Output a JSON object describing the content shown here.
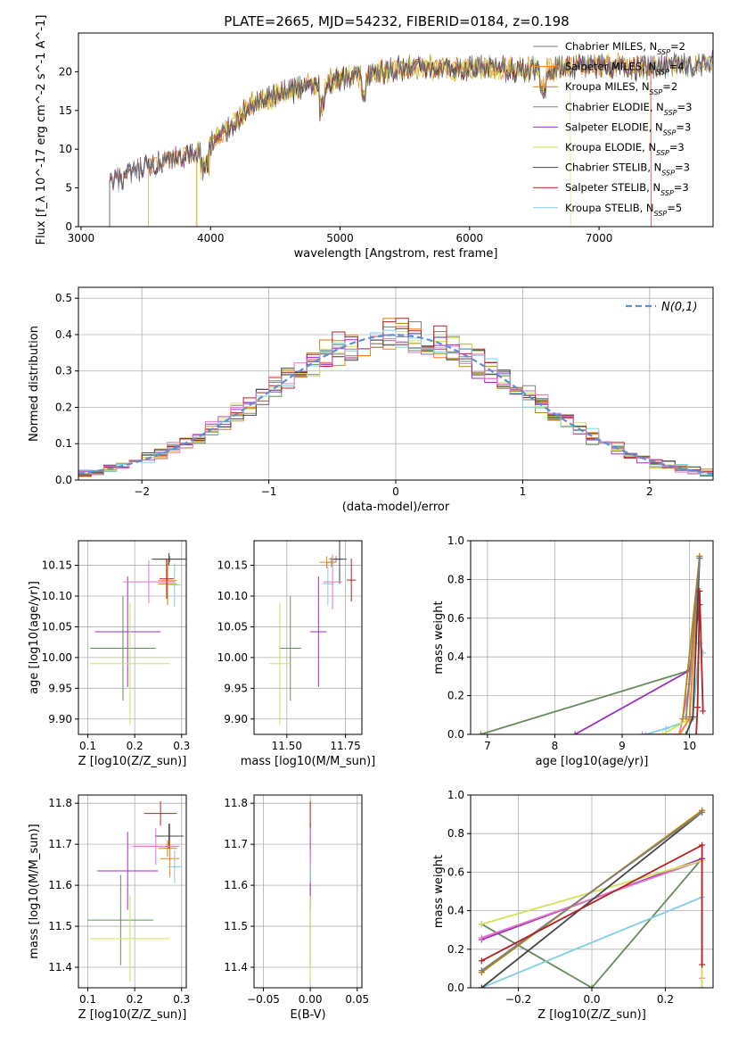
{
  "figure_title": "PLATE=2665, MJD=54232, FIBERID=0184, z=0.198",
  "palette": [
    "#7f7f7f",
    "#ff7f0e",
    "#b8860b",
    "#6a8a5e",
    "#9b30c0",
    "#d4e157",
    "#444444",
    "#b22222",
    "#80d0e0",
    "#e377c2"
  ],
  "chart_data": [
    {
      "id": "spectrum",
      "type": "line",
      "title": "PLATE=2665, MJD=54232, FIBERID=0184, z=0.198",
      "xlabel": "wavelength [Angstrom, rest frame]",
      "ylabel": "Flux [f_λ 10^-17 erg cm^-2 s^-1 A^-1]",
      "xlim": [
        2980,
        7880
      ],
      "ylim": [
        0,
        25
      ],
      "xticks": [
        3000,
        4000,
        5000,
        6000,
        7000
      ],
      "yticks": [
        0,
        5,
        10,
        15,
        20
      ],
      "grid": false,
      "legend_position": "right",
      "continuum": [
        [
          3220,
          5.5
        ],
        [
          3500,
          7.5
        ],
        [
          3900,
          9.5
        ],
        [
          4100,
          12
        ],
        [
          4300,
          15.5
        ],
        [
          4600,
          17.5
        ],
        [
          5000,
          19
        ],
        [
          5500,
          20.5
        ],
        [
          6000,
          20.5
        ],
        [
          6500,
          20.2
        ],
        [
          7000,
          20.8
        ],
        [
          7400,
          20.5
        ],
        [
          7800,
          21
        ]
      ],
      "legend": [
        {
          "name": "Chabrier MILES, N_SSP=2",
          "color": "#7f7f7f"
        },
        {
          "name": "Salpeter MILES, N_SSP=4",
          "color": "#ff7f0e"
        },
        {
          "name": "Kroupa MILES, N_SSP=2",
          "color": "#b8860b"
        },
        {
          "name": "Chabrier ELODIE, N_SSP=3",
          "color": "#6a8a5e"
        },
        {
          "name": "Salpeter ELODIE, N_SSP=3",
          "color": "#9b30c0"
        },
        {
          "name": "Kroupa ELODIE, N_SSP=3",
          "color": "#d4e157"
        },
        {
          "name": "Chabrier STELIB, N_SSP=3",
          "color": "#444444"
        },
        {
          "name": "Salpeter STELIB, N_SSP=3",
          "color": "#b22222"
        },
        {
          "name": "Kroupa STELIB, N_SSP=5",
          "color": "#80d0e0"
        }
      ]
    },
    {
      "id": "residuals",
      "type": "step",
      "xlabel": "(data-model)/error",
      "ylabel": "Normed distribution",
      "xlim": [
        -2.5,
        2.5
      ],
      "ylim": [
        0,
        0.53
      ],
      "xticks": [
        -2,
        -1,
        0,
        1,
        2
      ],
      "yticks": [
        0.0,
        0.1,
        0.2,
        0.3,
        0.4,
        0.5
      ],
      "grid": true,
      "legend_position": "top-right",
      "reference_curve": {
        "name": "N(0,1)",
        "mean": 0,
        "sigma": 1,
        "color": "#5b8ed6"
      }
    },
    {
      "id": "age_vs_Z",
      "type": "errorbar",
      "xlabel": "Z [log10(Z/Z_sun)]",
      "ylabel": "age [log10(age/yr)]",
      "xlim": [
        0.08,
        0.31
      ],
      "ylim": [
        9.875,
        10.19
      ],
      "xticks": [
        0.1,
        0.2,
        0.3
      ],
      "yticks": [
        9.9,
        9.95,
        10.0,
        10.05,
        10.1,
        10.15
      ],
      "grid": true,
      "points": [
        {
          "x": 0.275,
          "xerr": 0.04,
          "y": 10.16,
          "yerr": 0.005,
          "color": "#7f7f7f"
        },
        {
          "x": 0.27,
          "xerr": 0.02,
          "y": 10.125,
          "yerr": 0.035,
          "color": "#ff7f0e"
        },
        {
          "x": 0.27,
          "xerr": 0.02,
          "y": 10.12,
          "yerr": 0.035,
          "color": "#b8860b"
        },
        {
          "x": 0.175,
          "xerr": 0.07,
          "y": 10.015,
          "yerr": 0.085,
          "color": "#6a8a5e"
        },
        {
          "x": 0.185,
          "xerr": 0.07,
          "y": 10.042,
          "yerr": 0.09,
          "color": "#9b30c0"
        },
        {
          "x": 0.19,
          "xerr": 0.085,
          "y": 9.99,
          "yerr": 0.1,
          "color": "#d4e157"
        },
        {
          "x": 0.273,
          "xerr": 0.035,
          "y": 10.16,
          "yerr": 0.01,
          "color": "#444444"
        },
        {
          "x": 0.268,
          "xerr": 0.015,
          "y": 10.128,
          "yerr": 0.032,
          "color": "#b22222"
        },
        {
          "x": 0.285,
          "xerr": 0.015,
          "y": 10.118,
          "yerr": 0.035,
          "color": "#80d0e0"
        },
        {
          "x": 0.23,
          "xerr": 0.055,
          "y": 10.123,
          "yerr": 0.035,
          "color": "#e377c2"
        }
      ]
    },
    {
      "id": "age_vs_mass",
      "type": "errorbar",
      "xlabel": "mass [log10(M/M_sun)]",
      "ylabel": "",
      "xlim": [
        11.36,
        11.82
      ],
      "ylim": [
        9.875,
        10.19
      ],
      "xticks": [
        11.5,
        11.75
      ],
      "yticks": [
        9.9,
        9.95,
        10.0,
        10.05,
        10.1,
        10.15
      ],
      "grid": true,
      "points": [
        {
          "x": 11.71,
          "xerr": 0.03,
          "y": 10.16,
          "yerr": 0.005,
          "color": "#7f7f7f"
        },
        {
          "x": 11.67,
          "xerr": 0.03,
          "y": 10.155,
          "yerr": 0.01,
          "color": "#ff7f0e"
        },
        {
          "x": 11.69,
          "xerr": 0.02,
          "y": 10.155,
          "yerr": 0.008,
          "color": "#b8860b"
        },
        {
          "x": 11.515,
          "xerr": 0.045,
          "y": 10.015,
          "yerr": 0.085,
          "color": "#6a8a5e"
        },
        {
          "x": 11.635,
          "xerr": 0.035,
          "y": 10.042,
          "yerr": 0.09,
          "color": "#9b30c0"
        },
        {
          "x": 11.47,
          "xerr": 0.045,
          "y": 9.99,
          "yerr": 0.1,
          "color": "#d4e157"
        },
        {
          "x": 11.725,
          "xerr": 0.03,
          "y": 10.16,
          "yerr": 0.04,
          "color": "#444444"
        },
        {
          "x": 11.775,
          "xerr": 0.02,
          "y": 10.126,
          "yerr": 0.035,
          "color": "#b22222"
        },
        {
          "x": 11.675,
          "xerr": 0.025,
          "y": 10.12,
          "yerr": 0.035,
          "color": "#80d0e0"
        },
        {
          "x": 11.695,
          "xerr": 0.04,
          "y": 10.123,
          "yerr": 0.045,
          "color": "#e377c2"
        }
      ]
    },
    {
      "id": "mass_weight_vs_age",
      "type": "line",
      "xlabel": "age [log10(age/yr)]",
      "ylabel": "mass weight",
      "xlim": [
        6.75,
        10.35
      ],
      "ylim": [
        0,
        1.0
      ],
      "xticks": [
        7,
        8,
        9,
        10
      ],
      "yticks": [
        0.0,
        0.2,
        0.4,
        0.6,
        0.8,
        1.0
      ],
      "grid": true,
      "series": [
        {
          "color": "#6a8a5e",
          "x": [
            6.9,
            10.0,
            10.15
          ],
          "y": [
            0.0,
            0.33,
            0.67
          ]
        },
        {
          "color": "#9b30c0",
          "x": [
            8.3,
            10.0,
            10.15
          ],
          "y": [
            0.0,
            0.33,
            0.67
          ]
        },
        {
          "color": "#80d0e0",
          "x": [
            9.35,
            9.65,
            10.05,
            10.15,
            10.2
          ],
          "y": [
            0.0,
            0.03,
            0.08,
            0.47,
            0.42
          ]
        },
        {
          "color": "#e377c2",
          "x": [
            9.3,
            9.85,
            10.0,
            10.15
          ],
          "y": [
            0.0,
            0.0,
            0.26,
            0.74
          ]
        },
        {
          "color": "#d4e157",
          "x": [
            9.6,
            10.0,
            10.1
          ],
          "y": [
            0.0,
            0.08,
            0.66
          ]
        },
        {
          "color": "#ff7f0e",
          "x": [
            9.85,
            10.0,
            10.15
          ],
          "y": [
            0.0,
            0.08,
            0.92
          ]
        },
        {
          "color": "#b8860b",
          "x": [
            9.9,
            10.15
          ],
          "y": [
            0.08,
            0.92
          ]
        },
        {
          "color": "#444444",
          "x": [
            9.95,
            10.05,
            10.15
          ],
          "y": [
            0.0,
            0.09,
            0.91
          ]
        },
        {
          "color": "#7f7f7f",
          "x": [
            9.95,
            10.15
          ],
          "y": [
            0.09,
            0.91
          ]
        },
        {
          "color": "#b22222",
          "x": [
            10.1,
            10.12,
            10.15,
            10.2
          ],
          "y": [
            0.0,
            0.14,
            0.74,
            0.12
          ]
        }
      ]
    },
    {
      "id": "mass_vs_Z",
      "type": "errorbar",
      "xlabel": "Z [log10(Z/Z_sun)]",
      "ylabel": "mass [log10(M/M_sun)]",
      "xlim": [
        0.08,
        0.31
      ],
      "ylim": [
        11.35,
        11.82
      ],
      "xticks": [
        0.1,
        0.2,
        0.3
      ],
      "yticks": [
        11.4,
        11.5,
        11.6,
        11.7,
        11.8
      ],
      "grid": true,
      "points": [
        {
          "x": 0.275,
          "xerr": 0.03,
          "y": 11.72,
          "yerr": 0.03,
          "color": "#7f7f7f"
        },
        {
          "x": 0.275,
          "xerr": 0.02,
          "y": 11.665,
          "yerr": 0.045,
          "color": "#ff7f0e"
        },
        {
          "x": 0.27,
          "xerr": 0.02,
          "y": 11.69,
          "yerr": 0.02,
          "color": "#b8860b"
        },
        {
          "x": 0.17,
          "xerr": 0.07,
          "y": 11.515,
          "yerr": 0.11,
          "color": "#6a8a5e"
        },
        {
          "x": 0.185,
          "xerr": 0.065,
          "y": 11.635,
          "yerr": 0.095,
          "color": "#9b30c0"
        },
        {
          "x": 0.19,
          "xerr": 0.085,
          "y": 11.47,
          "yerr": 0.105,
          "color": "#d4e157"
        },
        {
          "x": 0.273,
          "xerr": 0.03,
          "y": 11.72,
          "yerr": 0.03,
          "color": "#444444"
        },
        {
          "x": 0.255,
          "xerr": 0.035,
          "y": 11.775,
          "yerr": 0.03,
          "color": "#b22222"
        },
        {
          "x": 0.285,
          "xerr": 0.015,
          "y": 11.645,
          "yerr": 0.04,
          "color": "#80d0e0"
        },
        {
          "x": 0.245,
          "xerr": 0.05,
          "y": 11.695,
          "yerr": 0.045,
          "color": "#e377c2"
        }
      ]
    },
    {
      "id": "mass_vs_EBV",
      "type": "errorbar",
      "xlabel": "E(B-V)",
      "ylabel": "",
      "xlim": [
        -0.06,
        0.055
      ],
      "ylim": [
        11.35,
        11.82
      ],
      "xticks": [
        -0.05,
        0.0,
        0.05
      ],
      "yticks": [
        11.4,
        11.5,
        11.6,
        11.7,
        11.8
      ],
      "grid": true,
      "points": [
        {
          "x": 0.0,
          "xerr": 0.0,
          "y": 11.72,
          "yerr": 0.03,
          "color": "#7f7f7f"
        },
        {
          "x": 0.0,
          "xerr": 0.0,
          "y": 11.665,
          "yerr": 0.045,
          "color": "#ff7f0e"
        },
        {
          "x": 0.0,
          "xerr": 0.0,
          "y": 11.69,
          "yerr": 0.02,
          "color": "#b8860b"
        },
        {
          "x": 0.0,
          "xerr": 0.0,
          "y": 11.515,
          "yerr": 0.11,
          "color": "#6a8a5e"
        },
        {
          "x": 0.0,
          "xerr": 0.0,
          "y": 11.635,
          "yerr": 0.095,
          "color": "#9b30c0"
        },
        {
          "x": 0.0,
          "xerr": 0.0,
          "y": 11.47,
          "yerr": 0.105,
          "color": "#d4e157"
        },
        {
          "x": 0.0,
          "xerr": 0.0,
          "y": 11.72,
          "yerr": 0.03,
          "color": "#444444"
        },
        {
          "x": 0.0,
          "xerr": 0.0,
          "y": 11.775,
          "yerr": 0.03,
          "color": "#b22222"
        },
        {
          "x": 0.0,
          "xerr": 0.0,
          "y": 11.645,
          "yerr": 0.04,
          "color": "#80d0e0"
        },
        {
          "x": 0.0,
          "xerr": 0.0,
          "y": 11.695,
          "yerr": 0.045,
          "color": "#e377c2"
        }
      ]
    },
    {
      "id": "mass_weight_vs_Z",
      "type": "line",
      "xlabel": "Z [log10(Z/Z_sun)]",
      "ylabel": "mass weight",
      "xlim": [
        -0.33,
        0.33
      ],
      "ylim": [
        0,
        1.0
      ],
      "xticks": [
        -0.2,
        0.0,
        0.2
      ],
      "yticks": [
        0.0,
        0.2,
        0.4,
        0.6,
        0.8,
        1.0
      ],
      "grid": true,
      "series": [
        {
          "color": "#6a8a5e",
          "x": [
            -0.3,
            0.0,
            0.3
          ],
          "y": [
            0.33,
            0.0,
            0.67
          ]
        },
        {
          "color": "#9b30c0",
          "x": [
            -0.3,
            0.3
          ],
          "y": [
            0.25,
            0.67
          ]
        },
        {
          "color": "#80d0e0",
          "x": [
            -0.3,
            0.3,
            0.3
          ],
          "y": [
            0.0,
            0.47,
            0.0
          ]
        },
        {
          "color": "#e377c2",
          "x": [
            -0.3,
            0.3,
            0.3
          ],
          "y": [
            0.26,
            0.66,
            0.05
          ]
        },
        {
          "color": "#d4e157",
          "x": [
            -0.3,
            0.3,
            0.3
          ],
          "y": [
            0.33,
            0.66,
            0.0
          ]
        },
        {
          "color": "#ff7f0e",
          "x": [
            -0.3,
            0.3
          ],
          "y": [
            0.08,
            0.92
          ]
        },
        {
          "color": "#b8860b",
          "x": [
            -0.3,
            0.3
          ],
          "y": [
            0.08,
            0.92
          ]
        },
        {
          "color": "#444444",
          "x": [
            -0.3,
            0.3
          ],
          "y": [
            0.0,
            0.91
          ]
        },
        {
          "color": "#7f7f7f",
          "x": [
            -0.3,
            0.3
          ],
          "y": [
            0.09,
            0.91
          ]
        },
        {
          "color": "#b22222",
          "x": [
            -0.3,
            0.3,
            0.3
          ],
          "y": [
            0.14,
            0.74,
            0.12
          ]
        }
      ]
    }
  ]
}
